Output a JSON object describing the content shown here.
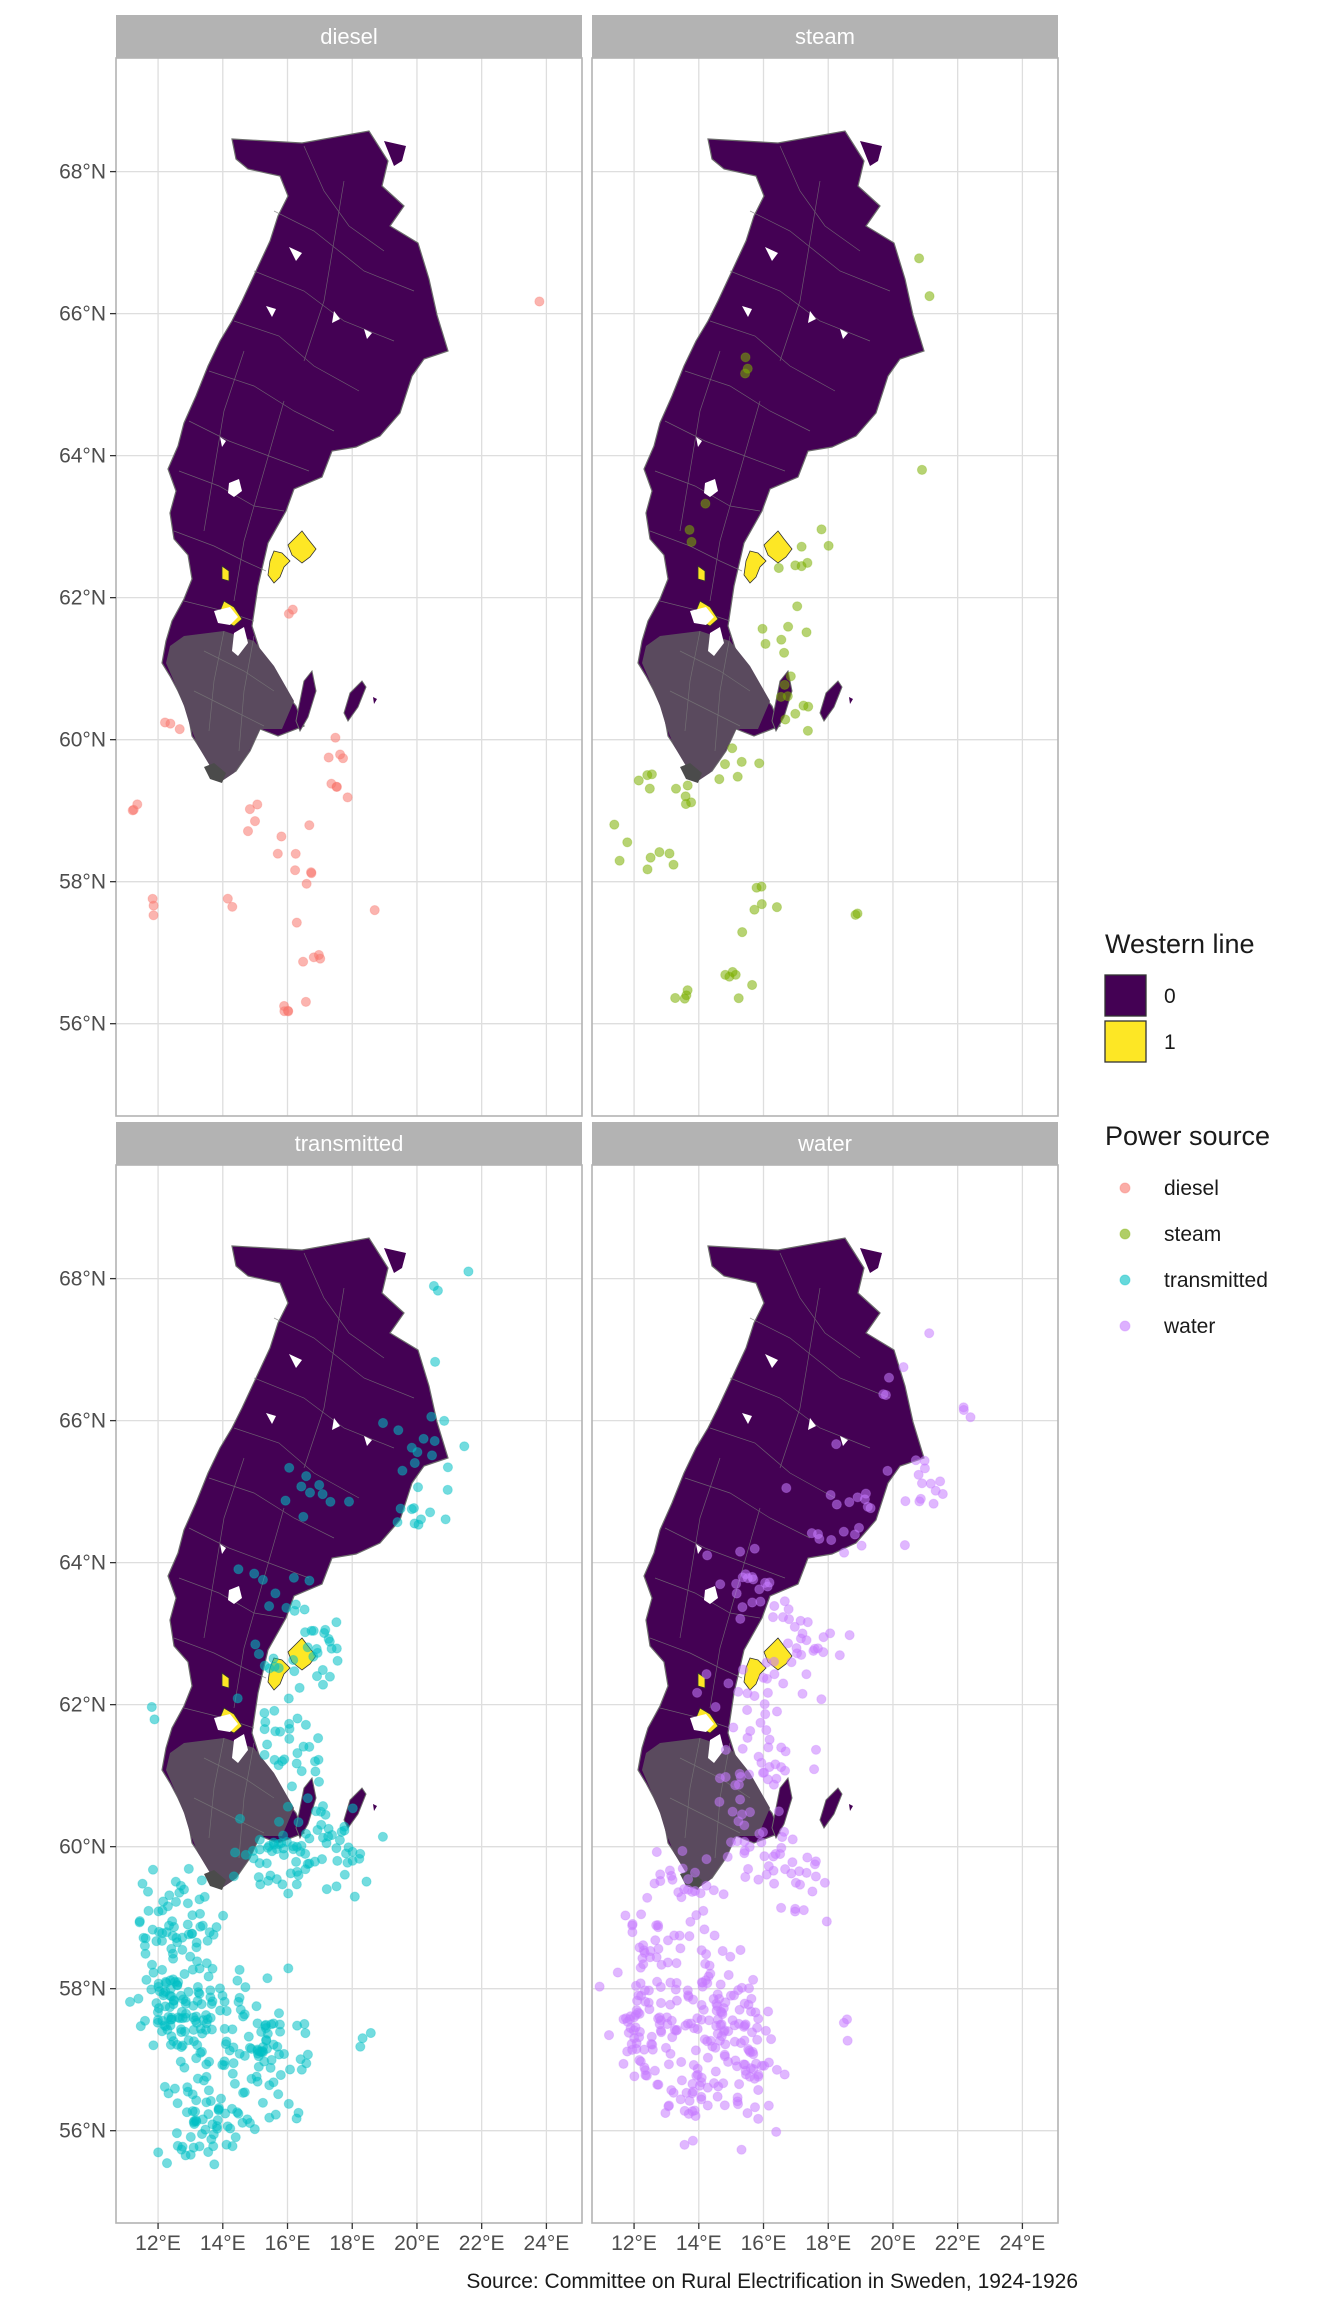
{
  "chart_data": {
    "type": "map",
    "caption": "Source: Committee on Rural Electrification in Sweden, 1924-1926",
    "x_axis": {
      "range": [
        10.7,
        25.1
      ],
      "ticks": [
        {
          "value": 12,
          "label": "12°E"
        },
        {
          "value": 14,
          "label": "14°E"
        },
        {
          "value": 16,
          "label": "16°E"
        },
        {
          "value": 18,
          "label": "18°E"
        },
        {
          "value": 20,
          "label": "20°E"
        },
        {
          "value": 22,
          "label": "22°E"
        },
        {
          "value": 24,
          "label": "24°E"
        }
      ]
    },
    "y_axis": {
      "range": [
        54.7,
        69.6
      ],
      "ticks": [
        {
          "value": 56,
          "label": "56°N"
        },
        {
          "value": 58,
          "label": "58°N"
        },
        {
          "value": 60,
          "label": "60°N"
        },
        {
          "value": 62,
          "label": "62°N"
        },
        {
          "value": 64,
          "label": "64°N"
        },
        {
          "value": 66,
          "label": "66°N"
        },
        {
          "value": 68,
          "label": "68°N"
        }
      ]
    },
    "grid": true,
    "legend_position": "right",
    "fill_legend": {
      "title": "Western line",
      "entries": [
        {
          "label": "0",
          "color": "#440154"
        },
        {
          "label": "1",
          "color": "#FDE725"
        }
      ]
    },
    "color_legend": {
      "title": "Power source",
      "entries": [
        {
          "label": "diesel",
          "color": "#F8766D"
        },
        {
          "label": "steam",
          "color": "#7CAE00"
        },
        {
          "label": "transmitted",
          "color": "#00BFC4"
        },
        {
          "label": "water",
          "color": "#C77CFF"
        }
      ]
    },
    "facets": [
      {
        "label": "diesel",
        "color": "#F8766D",
        "clusters": [
          [
            12.2,
            60.2,
            0.3,
            0.15,
            3
          ],
          [
            11.2,
            59.0,
            0.2,
            0.2,
            3
          ],
          [
            11.8,
            57.7,
            0.3,
            0.3,
            3
          ],
          [
            15.0,
            58.9,
            0.4,
            0.3,
            4
          ],
          [
            16.3,
            58.6,
            0.5,
            0.4,
            5
          ],
          [
            17.6,
            59.3,
            0.5,
            0.3,
            4
          ],
          [
            18.0,
            59.9,
            0.5,
            0.3,
            4
          ],
          [
            16.6,
            58.0,
            0.3,
            0.3,
            3
          ],
          [
            16.5,
            57.0,
            0.3,
            0.5,
            4
          ],
          [
            16.0,
            56.2,
            0.4,
            0.1,
            4
          ],
          [
            14.2,
            57.8,
            0.3,
            0.3,
            2
          ],
          [
            16.2,
            61.6,
            0.3,
            0.2,
            2
          ],
          [
            18.6,
            57.6,
            0.2,
            0.1,
            1
          ],
          [
            23.8,
            66.2,
            0.1,
            0.1,
            1
          ],
          [
            17.0,
            56.9,
            0.2,
            0.1,
            2
          ]
        ]
      },
      {
        "label": "steam",
        "color": "#7CAE00",
        "clusters": [
          [
            15.5,
            65.3,
            0.4,
            0.2,
            3
          ],
          [
            20.8,
            66.8,
            0.1,
            0.1,
            1
          ],
          [
            21.1,
            66.2,
            0.1,
            0.1,
            1
          ],
          [
            20.9,
            63.8,
            0.1,
            0.1,
            1
          ],
          [
            17.1,
            62.6,
            0.7,
            0.7,
            8
          ],
          [
            16.5,
            61.4,
            0.6,
            0.4,
            6
          ],
          [
            17.0,
            60.4,
            0.8,
            0.4,
            9
          ],
          [
            15.0,
            59.8,
            0.8,
            0.4,
            6
          ],
          [
            13.5,
            59.3,
            0.6,
            0.3,
            5
          ],
          [
            12.3,
            59.6,
            0.4,
            0.3,
            4
          ],
          [
            11.6,
            58.6,
            0.3,
            0.3,
            3
          ],
          [
            13.0,
            58.4,
            0.6,
            0.3,
            5
          ],
          [
            15.8,
            57.9,
            0.7,
            0.4,
            6
          ],
          [
            15.2,
            56.7,
            0.8,
            0.5,
            6
          ],
          [
            13.8,
            56.4,
            0.5,
            0.4,
            4
          ],
          [
            14.2,
            63.2,
            0.4,
            0.4,
            3
          ],
          [
            18.6,
            57.6,
            0.2,
            0.1,
            2
          ]
        ]
      },
      {
        "label": "transmitted",
        "color": "#00BFC4",
        "clusters": [
          [
            21.7,
            68.0,
            0.1,
            0.1,
            1
          ],
          [
            20.4,
            67.8,
            0.3,
            0.1,
            2
          ],
          [
            20.6,
            66.8,
            0.2,
            0.1,
            1
          ],
          [
            20.5,
            65.6,
            1.3,
            0.5,
            14
          ],
          [
            20.2,
            64.6,
            1.0,
            0.5,
            10
          ],
          [
            16.8,
            64.9,
            1.4,
            0.6,
            10
          ],
          [
            15.4,
            63.7,
            1.2,
            0.5,
            12
          ],
          [
            17.0,
            62.6,
            0.9,
            0.6,
            22
          ],
          [
            15.5,
            62.2,
            1.1,
            0.7,
            16
          ],
          [
            16.2,
            61.2,
            1.0,
            0.5,
            22
          ],
          [
            17.3,
            60.0,
            1.1,
            0.6,
            45
          ],
          [
            15.3,
            59.8,
            1.2,
            0.5,
            35
          ],
          [
            12.6,
            58.9,
            1.2,
            0.6,
            55
          ],
          [
            12.6,
            57.8,
            1.2,
            0.7,
            110
          ],
          [
            14.6,
            57.3,
            1.4,
            0.7,
            70
          ],
          [
            13.5,
            56.2,
            1.1,
            0.6,
            60
          ],
          [
            15.8,
            56.9,
            1.0,
            0.8,
            22
          ],
          [
            11.9,
            61.9,
            0.2,
            0.2,
            2
          ],
          [
            18.4,
            57.3,
            0.2,
            0.2,
            3
          ]
        ]
      },
      {
        "label": "water",
        "color": "#C77CFF",
        "clusters": [
          [
            21.1,
            67.2,
            0.2,
            0.1,
            1
          ],
          [
            20.1,
            66.6,
            0.6,
            0.3,
            4
          ],
          [
            22.3,
            66.2,
            0.5,
            0.2,
            3
          ],
          [
            21.0,
            65.0,
            1.0,
            0.6,
            14
          ],
          [
            18.2,
            64.7,
            1.6,
            0.6,
            20
          ],
          [
            15.6,
            63.6,
            1.4,
            0.6,
            22
          ],
          [
            17.2,
            62.7,
            0.9,
            0.6,
            28
          ],
          [
            15.2,
            62.1,
            1.1,
            0.7,
            20
          ],
          [
            16.3,
            61.2,
            1.0,
            0.5,
            25
          ],
          [
            15.7,
            60.0,
            1.4,
            0.7,
            35
          ],
          [
            13.5,
            59.4,
            1.2,
            0.6,
            30
          ],
          [
            12.5,
            58.5,
            1.0,
            0.6,
            30
          ],
          [
            12.5,
            57.4,
            1.0,
            0.8,
            70
          ],
          [
            14.5,
            57.8,
            1.2,
            0.7,
            70
          ],
          [
            15.6,
            56.9,
            1.1,
            0.8,
            60
          ],
          [
            13.8,
            56.4,
            0.9,
            0.5,
            32
          ],
          [
            17.3,
            59.4,
            0.8,
            0.5,
            18
          ],
          [
            18.5,
            57.5,
            0.2,
            0.2,
            3
          ]
        ]
      }
    ]
  }
}
